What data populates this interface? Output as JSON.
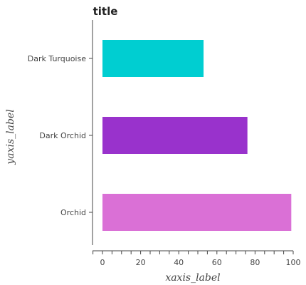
{
  "chart_data": {
    "type": "bar",
    "orientation": "horizontal",
    "title": "title",
    "xlabel": "xaxis_label",
    "ylabel": "yaxis_label",
    "categories": [
      "Orchid",
      "Dark Orchid",
      "Dark Turquoise"
    ],
    "values": [
      99,
      76,
      53
    ],
    "colors": [
      "#da70d6",
      "#9932cc",
      "#00ced1"
    ],
    "xlim": [
      0,
      100
    ],
    "xticks": [
      0,
      20,
      40,
      60,
      80,
      100
    ],
    "grid": false,
    "legend": "none"
  }
}
